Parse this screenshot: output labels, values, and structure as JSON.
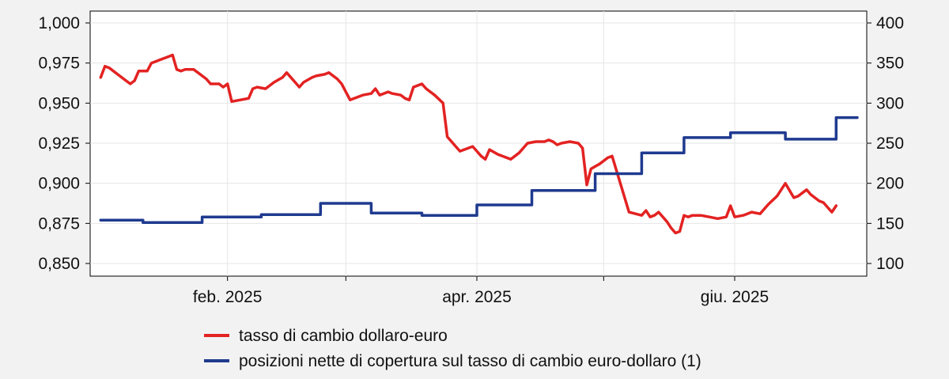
{
  "chart_data": {
    "type": "line",
    "y_left": {
      "min": 0.85,
      "max": 1.0,
      "ticks": [
        1.0,
        0.975,
        0.95,
        0.925,
        0.9,
        0.875,
        0.85
      ],
      "tick_labels": [
        "1,000",
        "0,975",
        "0,950",
        "0,925",
        "0,900",
        "0,875",
        "0,850"
      ]
    },
    "y_right": {
      "min": 100,
      "max": 400,
      "ticks": [
        400,
        350,
        300,
        250,
        200,
        150,
        100
      ],
      "tick_labels": [
        "400",
        "350",
        "300",
        "250",
        "200",
        "150",
        "100"
      ]
    },
    "x_axis": {
      "start": "2025-01-01",
      "end": "2025-06-30",
      "labels": [
        {
          "date": "2025-02-01",
          "text": "feb. 2025"
        },
        {
          "date": "2025-04-01",
          "text": "apr. 2025"
        },
        {
          "date": "2025-06-01",
          "text": "giu. 2025"
        }
      ],
      "gridlines": [
        "2025-02-01",
        "2025-03-01",
        "2025-04-01",
        "2025-05-01",
        "2025-06-01"
      ]
    },
    "grid": true,
    "legend_position": "bottom",
    "series": [
      {
        "name": "tasso di cambio dollaro-euro",
        "color": "#e32222",
        "axis": "left",
        "points": [
          [
            "2025-01-02",
            0.966
          ],
          [
            "2025-01-03",
            0.973
          ],
          [
            "2025-01-04",
            0.972
          ],
          [
            "2025-01-06",
            0.968
          ],
          [
            "2025-01-08",
            0.964
          ],
          [
            "2025-01-09",
            0.962
          ],
          [
            "2025-01-10",
            0.964
          ],
          [
            "2025-01-11",
            0.97
          ],
          [
            "2025-01-13",
            0.97
          ],
          [
            "2025-01-14",
            0.975
          ],
          [
            "2025-01-16",
            0.977
          ],
          [
            "2025-01-18",
            0.979
          ],
          [
            "2025-01-19",
            0.98
          ],
          [
            "2025-01-20",
            0.971
          ],
          [
            "2025-01-21",
            0.97
          ],
          [
            "2025-01-22",
            0.971
          ],
          [
            "2025-01-24",
            0.971
          ],
          [
            "2025-01-25",
            0.969
          ],
          [
            "2025-01-27",
            0.965
          ],
          [
            "2025-01-28",
            0.962
          ],
          [
            "2025-01-30",
            0.962
          ],
          [
            "2025-01-31",
            0.96
          ],
          [
            "2025-02-01",
            0.962
          ],
          [
            "2025-02-02",
            0.951
          ],
          [
            "2025-02-04",
            0.952
          ],
          [
            "2025-02-06",
            0.953
          ],
          [
            "2025-02-07",
            0.959
          ],
          [
            "2025-02-08",
            0.96
          ],
          [
            "2025-02-10",
            0.959
          ],
          [
            "2025-02-12",
            0.963
          ],
          [
            "2025-02-14",
            0.966
          ],
          [
            "2025-02-15",
            0.969
          ],
          [
            "2025-02-17",
            0.963
          ],
          [
            "2025-02-18",
            0.96
          ],
          [
            "2025-02-19",
            0.963
          ],
          [
            "2025-02-21",
            0.966
          ],
          [
            "2025-02-22",
            0.967
          ],
          [
            "2025-02-24",
            0.968
          ],
          [
            "2025-02-25",
            0.969
          ],
          [
            "2025-02-27",
            0.965
          ],
          [
            "2025-02-28",
            0.962
          ],
          [
            "2025-03-02",
            0.952
          ],
          [
            "2025-03-04",
            0.954
          ],
          [
            "2025-03-05",
            0.955
          ],
          [
            "2025-03-07",
            0.956
          ],
          [
            "2025-03-08",
            0.959
          ],
          [
            "2025-03-09",
            0.955
          ],
          [
            "2025-03-11",
            0.957
          ],
          [
            "2025-03-12",
            0.956
          ],
          [
            "2025-03-14",
            0.955
          ],
          [
            "2025-03-15",
            0.953
          ],
          [
            "2025-03-16",
            0.952
          ],
          [
            "2025-03-17",
            0.96
          ],
          [
            "2025-03-19",
            0.962
          ],
          [
            "2025-03-20",
            0.959
          ],
          [
            "2025-03-22",
            0.955
          ],
          [
            "2025-03-24",
            0.95
          ],
          [
            "2025-03-25",
            0.929
          ],
          [
            "2025-03-27",
            0.923
          ],
          [
            "2025-03-28",
            0.92
          ],
          [
            "2025-03-30",
            0.922
          ],
          [
            "2025-03-31",
            0.923
          ],
          [
            "2025-04-01",
            0.92
          ],
          [
            "2025-04-02",
            0.917
          ],
          [
            "2025-04-03",
            0.915
          ],
          [
            "2025-04-04",
            0.921
          ],
          [
            "2025-04-06",
            0.918
          ],
          [
            "2025-04-08",
            0.916
          ],
          [
            "2025-04-09",
            0.915
          ],
          [
            "2025-04-11",
            0.919
          ],
          [
            "2025-04-13",
            0.925
          ],
          [
            "2025-04-15",
            0.926
          ],
          [
            "2025-04-17",
            0.926
          ],
          [
            "2025-04-18",
            0.927
          ],
          [
            "2025-04-19",
            0.926
          ],
          [
            "2025-04-20",
            0.924
          ],
          [
            "2025-04-21",
            0.925
          ],
          [
            "2025-04-23",
            0.926
          ],
          [
            "2025-04-25",
            0.925
          ],
          [
            "2025-04-26",
            0.922
          ],
          [
            "2025-04-27",
            0.899
          ],
          [
            "2025-04-28",
            0.909
          ],
          [
            "2025-04-30",
            0.912
          ],
          [
            "2025-05-02",
            0.916
          ],
          [
            "2025-05-03",
            0.917
          ],
          [
            "2025-05-07",
            0.882
          ],
          [
            "2025-05-10",
            0.88
          ],
          [
            "2025-05-11",
            0.883
          ],
          [
            "2025-05-12",
            0.879
          ],
          [
            "2025-05-13",
            0.88
          ],
          [
            "2025-05-14",
            0.882
          ],
          [
            "2025-05-16",
            0.876
          ],
          [
            "2025-05-17",
            0.872
          ],
          [
            "2025-05-18",
            0.869
          ],
          [
            "2025-05-19",
            0.87
          ],
          [
            "2025-05-20",
            0.88
          ],
          [
            "2025-05-21",
            0.879
          ],
          [
            "2025-05-22",
            0.88
          ],
          [
            "2025-05-24",
            0.88
          ],
          [
            "2025-05-26",
            0.879
          ],
          [
            "2025-05-28",
            0.878
          ],
          [
            "2025-05-30",
            0.879
          ],
          [
            "2025-05-31",
            0.886
          ],
          [
            "2025-06-01",
            0.879
          ],
          [
            "2025-06-03",
            0.88
          ],
          [
            "2025-06-04",
            0.881
          ],
          [
            "2025-06-05",
            0.882
          ],
          [
            "2025-06-07",
            0.881
          ],
          [
            "2025-06-08",
            0.884
          ],
          [
            "2025-06-09",
            0.887
          ],
          [
            "2025-06-11",
            0.892
          ],
          [
            "2025-06-13",
            0.9
          ],
          [
            "2025-06-15",
            0.891
          ],
          [
            "2025-06-16",
            0.892
          ],
          [
            "2025-06-18",
            0.896
          ],
          [
            "2025-06-19",
            0.893
          ],
          [
            "2025-06-21",
            0.889
          ],
          [
            "2025-06-22",
            0.888
          ],
          [
            "2025-06-24",
            0.882
          ],
          [
            "2025-06-25",
            0.886
          ]
        ]
      },
      {
        "name": "posizioni nette di copertura sul tasso di cambio euro-dollaro (1)",
        "color": "#1f3a8f",
        "axis": "right",
        "steps": [
          [
            "2025-01-02",
            154
          ],
          [
            "2025-01-12",
            151
          ],
          [
            "2025-01-26",
            158
          ],
          [
            "2025-02-09",
            161
          ],
          [
            "2025-02-23",
            175
          ],
          [
            "2025-03-07",
            163
          ],
          [
            "2025-03-19",
            160
          ],
          [
            "2025-04-01",
            173
          ],
          [
            "2025-04-14",
            191
          ],
          [
            "2025-04-29",
            212
          ],
          [
            "2025-05-10",
            238
          ],
          [
            "2025-05-20",
            257
          ],
          [
            "2025-05-31",
            263
          ],
          [
            "2025-06-13",
            255
          ],
          [
            "2025-06-25",
            282
          ]
        ]
      }
    ]
  }
}
